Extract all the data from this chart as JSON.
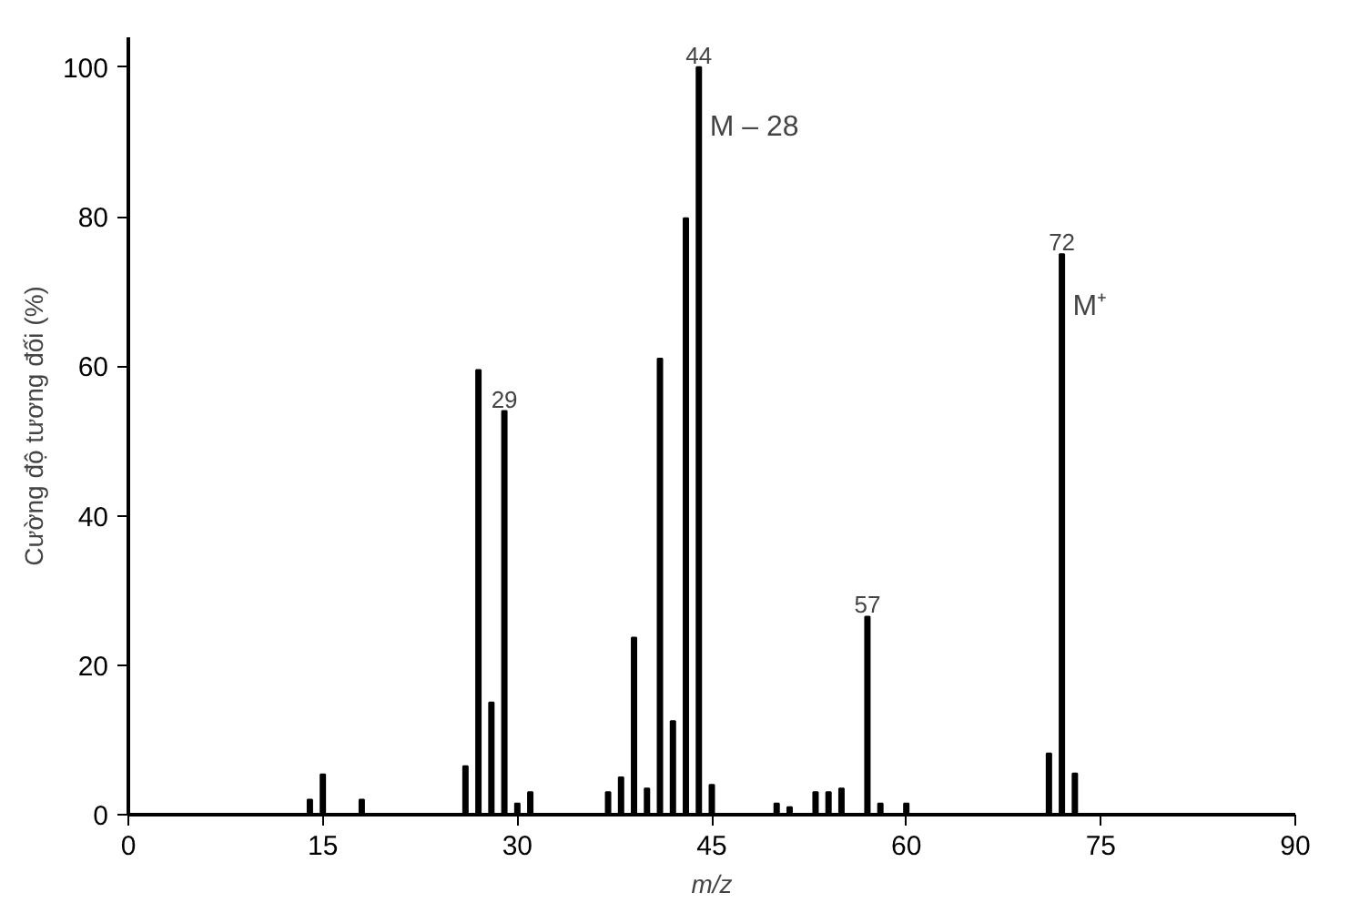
{
  "chart_data": {
    "type": "bar",
    "xlabel": "m/z",
    "ylabel": "Cường độ tương đối (%)",
    "x": [
      14,
      15,
      18,
      26,
      27,
      28,
      29,
      30,
      31,
      37,
      38,
      39,
      40,
      41,
      42,
      43,
      44,
      45,
      50,
      51,
      53,
      54,
      55,
      57,
      58,
      60,
      71,
      72,
      73
    ],
    "values": [
      2,
      5.4,
      2,
      6.5,
      59.5,
      15,
      54,
      1.5,
      3,
      3,
      5,
      23.7,
      3.5,
      61,
      12.5,
      79.8,
      100,
      4,
      1.5,
      1,
      3,
      3,
      3.5,
      26.5,
      1.5,
      1.5,
      8.2,
      75,
      5.5
    ],
    "color": "#000000",
    "xlim": [
      0,
      90
    ],
    "xticks": [
      0,
      15,
      30,
      45,
      60,
      75,
      90
    ],
    "ylim": [
      0,
      104
    ],
    "yticks": [
      0,
      20,
      40,
      60,
      80,
      100
    ],
    "grid": false,
    "annotations": [
      {
        "text": "44",
        "x": 44,
        "y": 100
      },
      {
        "text": "M – 28",
        "x": 44,
        "y": 92
      },
      {
        "text": "29",
        "x": 29,
        "y": 54
      },
      {
        "text": "57",
        "x": 57,
        "y": 26.5
      },
      {
        "text": "72",
        "x": 72,
        "y": 75
      },
      {
        "text": "M⁺",
        "x": 72,
        "y": 68
      }
    ]
  }
}
